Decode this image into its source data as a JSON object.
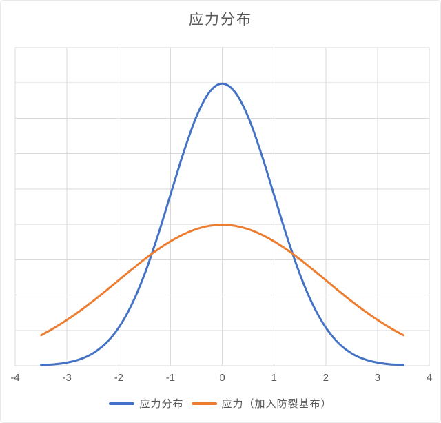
{
  "title": "应力分布",
  "colors": {
    "series_blue": "#4472C4",
    "series_orange": "#ED7D31",
    "grid": "#D9D9D9",
    "text": "#595959",
    "background": "#FFFFFF"
  },
  "chart_data": {
    "type": "line",
    "title": "应力分布",
    "xlabel": "",
    "ylabel": "",
    "xlim": [
      -4,
      4
    ],
    "ylim": [
      0,
      0.45
    ],
    "x_ticks": [
      "-4",
      "-3",
      "-2",
      "-1",
      "0",
      "1",
      "2",
      "3",
      "4"
    ],
    "y_axis_labels_visible": false,
    "y_gridline_step": 0.05,
    "grid": true,
    "legend_position": "bottom",
    "x": [
      -3.5,
      -3.25,
      -3,
      -2.75,
      -2.5,
      -2.25,
      -2,
      -1.75,
      -1.5,
      -1.25,
      -1,
      -0.75,
      -0.5,
      -0.25,
      0,
      0.25,
      0.5,
      0.75,
      1,
      1.25,
      1.5,
      1.75,
      2,
      2.25,
      2.5,
      2.75,
      3,
      3.25,
      3.5
    ],
    "series": [
      {
        "name": "应力分布",
        "color": "#4472C4",
        "values": [
          0.0009,
          0.002,
          0.0044,
          0.0091,
          0.0175,
          0.0317,
          0.054,
          0.0863,
          0.1295,
          0.1826,
          0.242,
          0.3011,
          0.3521,
          0.3867,
          0.3989,
          0.3867,
          0.3521,
          0.3011,
          0.242,
          0.1826,
          0.1295,
          0.0863,
          0.054,
          0.0317,
          0.0175,
          0.0091,
          0.0044,
          0.002,
          0.0009
        ]
      },
      {
        "name": "应力（加入防裂基布）",
        "color": "#ED7D31",
        "values": [
          0.0431,
          0.0533,
          0.0648,
          0.0775,
          0.0913,
          0.1059,
          0.121,
          0.136,
          0.1506,
          0.1641,
          0.176,
          0.1859,
          0.1933,
          0.1979,
          0.1995,
          0.1979,
          0.1933,
          0.1859,
          0.176,
          0.1641,
          0.1506,
          0.136,
          0.121,
          0.1059,
          0.0913,
          0.0775,
          0.0648,
          0.0533,
          0.0431
        ]
      }
    ]
  },
  "legend": {
    "items": [
      {
        "label": "应力分布",
        "color": "#4472C4"
      },
      {
        "label": "应力（加入防裂基布）",
        "color": "#ED7D31"
      }
    ]
  }
}
